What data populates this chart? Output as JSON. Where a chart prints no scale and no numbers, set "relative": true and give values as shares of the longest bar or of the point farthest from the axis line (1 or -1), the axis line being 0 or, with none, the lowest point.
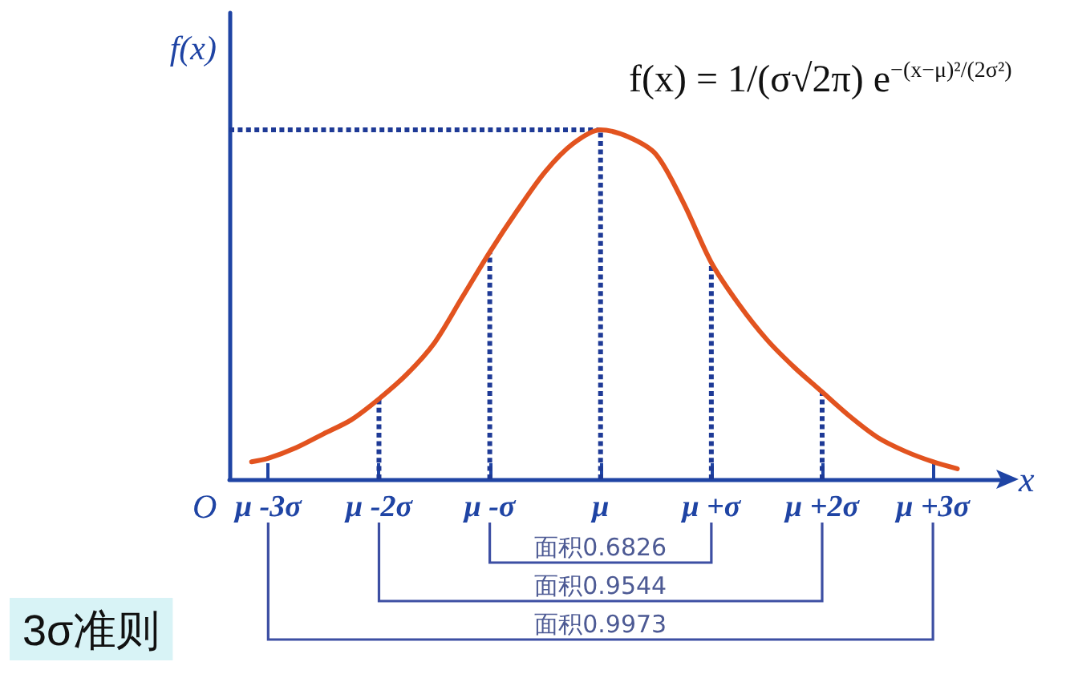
{
  "chart_data": {
    "type": "line",
    "title": "3σ准则",
    "xlabel": "x",
    "ylabel": "f(x)",
    "relative": true,
    "xlim": [
      -3.35,
      3.6
    ],
    "xticks": [
      {
        "value": -3,
        "label": "μ -3σ"
      },
      {
        "value": -2,
        "label": "μ -2σ"
      },
      {
        "value": -1,
        "label": "μ -σ"
      },
      {
        "value": 0,
        "label": "μ"
      },
      {
        "value": 1,
        "label": "μ +σ"
      },
      {
        "value": 2,
        "label": "μ +2σ"
      },
      {
        "value": 3,
        "label": "μ +3σ"
      }
    ],
    "tick_labels": "x",
    "series": [
      {
        "color": "#e2531f",
        "x": [
          -3.15,
          -3,
          -2.75,
          -2.5,
          -2.25,
          -2,
          -1.75,
          -1.5,
          -1.25,
          -1,
          -0.75,
          -0.5,
          -0.25,
          0,
          0.25,
          0.5,
          0.75,
          1,
          1.25,
          1.5,
          1.75,
          2,
          2.25,
          2.5,
          2.75,
          3,
          3.22
        ],
        "values": [
          0.05,
          0.06,
          0.09,
          0.13,
          0.17,
          0.23,
          0.3,
          0.39,
          0.52,
          0.65,
          0.77,
          0.88,
          0.96,
          1,
          0.98,
          0.93,
          0.79,
          0.62,
          0.5,
          0.4,
          0.32,
          0.25,
          0.18,
          0.12,
          0.08,
          0.05,
          0.03
        ]
      },
      {
        "color": "#1e3a96",
        "line_style": "dotted",
        "x": [
          -3.35,
          0
        ],
        "values": [
          1,
          1
        ]
      },
      {
        "color": "#1e3a96",
        "line_style": "dotted",
        "x": [
          -2,
          -2
        ],
        "values": [
          0,
          0.23
        ]
      },
      {
        "color": "#1e3a96",
        "line_style": "dotted",
        "x": [
          -1,
          -1
        ],
        "values": [
          0,
          0.65
        ]
      },
      {
        "color": "#1e3a96",
        "line_style": "dotted",
        "x": [
          0,
          0
        ],
        "values": [
          0,
          1
        ]
      },
      {
        "color": "#1e3a96",
        "line_style": "dotted",
        "x": [
          1,
          1
        ],
        "values": [
          0,
          0.62
        ]
      },
      {
        "color": "#1e3a96",
        "line_style": "dotted",
        "x": [
          2,
          2
        ],
        "values": [
          0,
          0.25
        ]
      }
    ],
    "annotations": [
      "O",
      "f(x) = 1/(σ√2π) e$^{−(x−μ)²/(2σ²)}$",
      "面积0.6826",
      "面积0.9544",
      "面积0.9973"
    ],
    "line_style": "solid",
    "marker": "none",
    "grid": false
  }
}
